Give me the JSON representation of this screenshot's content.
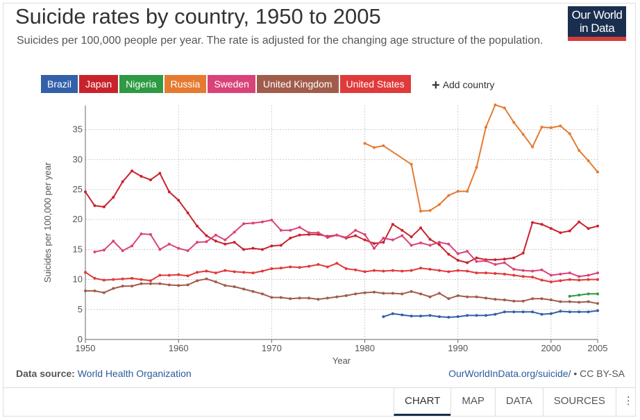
{
  "header": {
    "title": "Suicide rates by country, 1950 to 2005",
    "subtitle": "Suicides per 100,000 people per year. The rate is adjusted for the changing age structure of the population.",
    "logo_line1": "Our World",
    "logo_line2": "in Data"
  },
  "chips": [
    {
      "label": "Brazil",
      "color": "#3360a9"
    },
    {
      "label": "Japan",
      "color": "#c8232c"
    },
    {
      "label": "Nigeria",
      "color": "#2e9a43"
    },
    {
      "label": "Russia",
      "color": "#e57a30"
    },
    {
      "label": "Sweden",
      "color": "#d9437a"
    },
    {
      "label": "United Kingdom",
      "color": "#a15c4c"
    },
    {
      "label": "United States",
      "color": "#e03a3a"
    }
  ],
  "add_country": {
    "icon": "plus-icon",
    "label": "Add country"
  },
  "footer": {
    "source_label": "Data source:",
    "source_link": "World Health Organization",
    "url": "OurWorldInData.org/suicide/",
    "license": "• CC BY-SA"
  },
  "tabs": [
    {
      "label": "CHART",
      "active": true
    },
    {
      "label": "MAP",
      "active": false
    },
    {
      "label": "DATA",
      "active": false
    },
    {
      "label": "SOURCES",
      "active": false
    }
  ],
  "more_icon": "vertical-dots-icon",
  "chart_data": {
    "type": "line",
    "title": "Suicide rates by country, 1950 to 2005",
    "xlabel": "Year",
    "ylabel": "Suicides per 100,000 per year",
    "xlim": [
      1950,
      2005
    ],
    "ylim": [
      0,
      39
    ],
    "xticks": [
      1950,
      1960,
      1970,
      1980,
      1990,
      2000,
      2005
    ],
    "yticks": [
      0,
      5,
      10,
      15,
      20,
      25,
      30,
      35
    ],
    "grid": true,
    "series": [
      {
        "name": "Brazil",
        "color": "#3360a9",
        "x": [
          1982,
          1983,
          1984,
          1985,
          1986,
          1987,
          1988,
          1989,
          1990,
          1991,
          1992,
          1993,
          1994,
          1995,
          1996,
          1997,
          1998,
          1999,
          2000,
          2001,
          2002,
          2003,
          2004,
          2005
        ],
        "y": [
          3.8,
          4.3,
          4.1,
          3.9,
          3.9,
          4.0,
          3.8,
          3.7,
          3.8,
          4.0,
          4.0,
          4.0,
          4.2,
          4.6,
          4.6,
          4.6,
          4.6,
          4.2,
          4.3,
          4.7,
          4.6,
          4.6,
          4.6,
          4.8
        ]
      },
      {
        "name": "Japan",
        "color": "#c8232c",
        "x": [
          1950,
          1951,
          1952,
          1953,
          1954,
          1955,
          1956,
          1957,
          1958,
          1959,
          1960,
          1961,
          1962,
          1963,
          1964,
          1965,
          1966,
          1967,
          1968,
          1969,
          1970,
          1971,
          1972,
          1973,
          1974,
          1975,
          1976,
          1977,
          1978,
          1979,
          1980,
          1981,
          1982,
          1983,
          1984,
          1985,
          1986,
          1987,
          1988,
          1989,
          1990,
          1991,
          1992,
          1993,
          1994,
          1995,
          1996,
          1997,
          1998,
          1999,
          2000,
          2001,
          2002,
          2003,
          2004,
          2005
        ],
        "y": [
          24.6,
          22.3,
          22.1,
          23.7,
          26.3,
          28.1,
          27.2,
          26.6,
          27.7,
          24.6,
          23.2,
          21.1,
          18.9,
          17.3,
          16.4,
          15.9,
          16.2,
          15.0,
          15.2,
          15.0,
          15.6,
          15.7,
          16.9,
          17.4,
          17.5,
          17.5,
          17.2,
          17.4,
          16.9,
          17.3,
          16.6,
          16.0,
          16.2,
          19.2,
          18.2,
          17.1,
          18.6,
          16.7,
          15.8,
          14.2,
          13.2,
          12.8,
          13.6,
          13.3,
          13.3,
          13.4,
          13.6,
          14.4,
          19.5,
          19.2,
          18.5,
          17.8,
          18.1,
          19.6,
          18.5,
          18.9
        ]
      },
      {
        "name": "Nigeria",
        "color": "#2e9a43",
        "x": [
          2002,
          2003,
          2004,
          2005
        ],
        "y": [
          7.2,
          7.4,
          7.6,
          7.6
        ]
      },
      {
        "name": "Russia",
        "color": "#e57a30",
        "x": [
          1980,
          1981,
          1982,
          1985,
          1986,
          1987,
          1988,
          1989,
          1990,
          1991,
          1992,
          1993,
          1994,
          1995,
          1996,
          1997,
          1998,
          1999,
          2000,
          2001,
          2002,
          2003,
          2004,
          2005
        ],
        "y": [
          32.7,
          32.0,
          32.3,
          29.2,
          21.4,
          21.5,
          22.5,
          24.0,
          24.7,
          24.7,
          28.7,
          35.4,
          39.1,
          38.6,
          36.2,
          34.2,
          32.1,
          35.4,
          35.3,
          35.6,
          34.3,
          31.5,
          29.8,
          27.9
        ]
      },
      {
        "name": "Sweden",
        "color": "#d9437a",
        "x": [
          1951,
          1952,
          1953,
          1954,
          1955,
          1956,
          1957,
          1958,
          1959,
          1960,
          1961,
          1962,
          1963,
          1964,
          1965,
          1966,
          1967,
          1968,
          1969,
          1970,
          1971,
          1972,
          1973,
          1974,
          1975,
          1976,
          1977,
          1978,
          1979,
          1980,
          1981,
          1982,
          1983,
          1984,
          1985,
          1986,
          1987,
          1988,
          1989,
          1990,
          1991,
          1992,
          1993,
          1994,
          1995,
          1996,
          1997,
          1998,
          1999,
          2000,
          2001,
          2002,
          2003,
          2004,
          2005
        ],
        "y": [
          14.6,
          14.9,
          16.4,
          14.8,
          15.6,
          17.6,
          17.5,
          15.0,
          15.9,
          15.2,
          14.8,
          16.2,
          16.3,
          17.4,
          16.6,
          17.9,
          19.3,
          19.4,
          19.6,
          19.9,
          18.2,
          18.2,
          18.7,
          17.8,
          17.8,
          17.0,
          17.4,
          17.0,
          18.2,
          17.5,
          15.2,
          16.9,
          16.6,
          17.3,
          15.7,
          16.1,
          15.7,
          16.2,
          15.9,
          14.3,
          14.7,
          13.0,
          13.1,
          12.5,
          12.8,
          11.7,
          11.5,
          11.4,
          11.6,
          10.7,
          10.9,
          11.1,
          10.5,
          10.7,
          11.1
        ]
      },
      {
        "name": "United Kingdom",
        "color": "#a15c4c",
        "x": [
          1950,
          1951,
          1952,
          1953,
          1954,
          1955,
          1956,
          1957,
          1958,
          1959,
          1960,
          1961,
          1962,
          1963,
          1964,
          1965,
          1966,
          1967,
          1968,
          1969,
          1970,
          1971,
          1972,
          1973,
          1974,
          1975,
          1976,
          1977,
          1978,
          1979,
          1980,
          1981,
          1982,
          1983,
          1984,
          1985,
          1986,
          1987,
          1988,
          1989,
          1990,
          1991,
          1992,
          1993,
          1994,
          1995,
          1996,
          1997,
          1998,
          1999,
          2000,
          2001,
          2002,
          2003,
          2004,
          2005
        ],
        "y": [
          8.1,
          8.1,
          7.8,
          8.5,
          8.9,
          8.9,
          9.3,
          9.3,
          9.3,
          9.1,
          9.0,
          9.1,
          9.8,
          10.1,
          9.6,
          9.0,
          8.8,
          8.4,
          8.0,
          7.6,
          7.0,
          7.0,
          6.8,
          6.9,
          6.9,
          6.7,
          6.9,
          7.1,
          7.3,
          7.6,
          7.8,
          7.9,
          7.7,
          7.7,
          7.6,
          8.0,
          7.6,
          7.1,
          7.7,
          6.8,
          7.3,
          7.1,
          7.1,
          6.9,
          6.7,
          6.6,
          6.4,
          6.4,
          6.8,
          6.8,
          6.6,
          6.3,
          6.3,
          6.2,
          6.3,
          6.0
        ]
      },
      {
        "name": "United States",
        "color": "#e03a3a",
        "x": [
          1950,
          1951,
          1952,
          1953,
          1954,
          1955,
          1956,
          1957,
          1958,
          1959,
          1960,
          1961,
          1962,
          1963,
          1964,
          1965,
          1966,
          1967,
          1968,
          1969,
          1970,
          1971,
          1972,
          1973,
          1974,
          1975,
          1976,
          1977,
          1978,
          1979,
          1980,
          1981,
          1982,
          1983,
          1984,
          1985,
          1986,
          1987,
          1988,
          1989,
          1990,
          1991,
          1992,
          1993,
          1994,
          1995,
          1996,
          1997,
          1998,
          1999,
          2000,
          2001,
          2002,
          2003,
          2004,
          2005
        ],
        "y": [
          11.2,
          10.2,
          9.9,
          10.0,
          10.1,
          10.2,
          10.0,
          9.8,
          10.7,
          10.7,
          10.8,
          10.6,
          11.2,
          11.4,
          11.1,
          11.5,
          11.3,
          11.2,
          11.1,
          11.4,
          11.8,
          11.9,
          12.1,
          12.0,
          12.2,
          12.5,
          12.1,
          12.7,
          11.8,
          11.6,
          11.3,
          11.5,
          11.4,
          11.5,
          11.4,
          11.5,
          11.9,
          11.7,
          11.5,
          11.3,
          11.5,
          11.4,
          11.1,
          11.1,
          11.0,
          10.9,
          10.7,
          10.5,
          10.4,
          9.9,
          9.6,
          9.8,
          10.0,
          9.9,
          10.0,
          10.0
        ]
      }
    ]
  }
}
